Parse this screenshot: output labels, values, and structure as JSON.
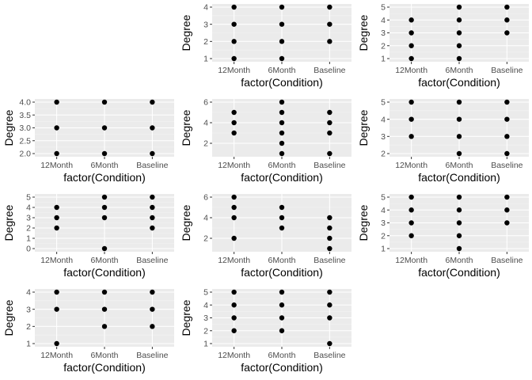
{
  "figure": {
    "background": "#ffffff",
    "panel_background": "#ebebeb",
    "grid_major_color": "#ffffff",
    "grid_minor_color": "#f4f4f4",
    "point_color": "#000000"
  },
  "chart_data": [
    {
      "type": "scatter",
      "xlabel": "factor(Condition)",
      "ylabel": "Degree",
      "categories": [
        "12Month",
        "6Month",
        "Baseline"
      ],
      "yticks": [
        "1",
        "2",
        "3",
        "4"
      ],
      "ylim": [
        1,
        4
      ],
      "grid": true,
      "points": [
        {
          "x": "12Month",
          "y": 1
        },
        {
          "x": "12Month",
          "y": 2
        },
        {
          "x": "12Month",
          "y": 3
        },
        {
          "x": "12Month",
          "y": 4
        },
        {
          "x": "6Month",
          "y": 1
        },
        {
          "x": "6Month",
          "y": 2
        },
        {
          "x": "6Month",
          "y": 3
        },
        {
          "x": "6Month",
          "y": 4
        },
        {
          "x": "Baseline",
          "y": 2
        },
        {
          "x": "Baseline",
          "y": 3
        },
        {
          "x": "Baseline",
          "y": 4
        }
      ]
    },
    {
      "type": "scatter",
      "xlabel": "factor(Condition)",
      "ylabel": "Degree",
      "categories": [
        "12Month",
        "6Month",
        "Baseline"
      ],
      "yticks": [
        "1",
        "2",
        "3",
        "4",
        "5"
      ],
      "ylim": [
        1,
        5
      ],
      "grid": true,
      "points": [
        {
          "x": "12Month",
          "y": 1
        },
        {
          "x": "12Month",
          "y": 2
        },
        {
          "x": "12Month",
          "y": 3
        },
        {
          "x": "12Month",
          "y": 4
        },
        {
          "x": "6Month",
          "y": 1
        },
        {
          "x": "6Month",
          "y": 2
        },
        {
          "x": "6Month",
          "y": 3
        },
        {
          "x": "6Month",
          "y": 4
        },
        {
          "x": "6Month",
          "y": 5
        },
        {
          "x": "Baseline",
          "y": 3
        },
        {
          "x": "Baseline",
          "y": 4
        },
        {
          "x": "Baseline",
          "y": 5
        }
      ]
    },
    {
      "type": "scatter",
      "xlabel": "factor(Condition)",
      "ylabel": "Degree",
      "categories": [
        "12Month",
        "6Month",
        "Baseline"
      ],
      "yticks": [
        "2.0",
        "2.5",
        "3.0",
        "3.5",
        "4.0"
      ],
      "ylim": [
        2,
        4
      ],
      "grid": true,
      "points": [
        {
          "x": "12Month",
          "y": 2
        },
        {
          "x": "12Month",
          "y": 3
        },
        {
          "x": "12Month",
          "y": 4
        },
        {
          "x": "6Month",
          "y": 2
        },
        {
          "x": "6Month",
          "y": 3
        },
        {
          "x": "6Month",
          "y": 4
        },
        {
          "x": "Baseline",
          "y": 2
        },
        {
          "x": "Baseline",
          "y": 3
        },
        {
          "x": "Baseline",
          "y": 4
        }
      ]
    },
    {
      "type": "scatter",
      "xlabel": "factor(Condition)",
      "ylabel": "Degree",
      "categories": [
        "12Month",
        "6Month",
        "Baseline"
      ],
      "yticks": [
        "2",
        "4",
        "6"
      ],
      "ylim": [
        1,
        6
      ],
      "grid": true,
      "points": [
        {
          "x": "12Month",
          "y": 3
        },
        {
          "x": "12Month",
          "y": 4
        },
        {
          "x": "12Month",
          "y": 5
        },
        {
          "x": "6Month",
          "y": 1
        },
        {
          "x": "6Month",
          "y": 2
        },
        {
          "x": "6Month",
          "y": 3
        },
        {
          "x": "6Month",
          "y": 4
        },
        {
          "x": "6Month",
          "y": 5
        },
        {
          "x": "6Month",
          "y": 6
        },
        {
          "x": "Baseline",
          "y": 1
        },
        {
          "x": "Baseline",
          "y": 3
        },
        {
          "x": "Baseline",
          "y": 4
        },
        {
          "x": "Baseline",
          "y": 5
        }
      ]
    },
    {
      "type": "scatter",
      "xlabel": "factor(Condition)",
      "ylabel": "Degree",
      "categories": [
        "12Month",
        "6Month",
        "Baseline"
      ],
      "yticks": [
        "2",
        "3",
        "4",
        "5"
      ],
      "ylim": [
        2,
        5
      ],
      "grid": true,
      "points": [
        {
          "x": "12Month",
          "y": 3
        },
        {
          "x": "12Month",
          "y": 4
        },
        {
          "x": "12Month",
          "y": 5
        },
        {
          "x": "6Month",
          "y": 2
        },
        {
          "x": "6Month",
          "y": 3
        },
        {
          "x": "6Month",
          "y": 4
        },
        {
          "x": "6Month",
          "y": 5
        },
        {
          "x": "Baseline",
          "y": 2
        },
        {
          "x": "Baseline",
          "y": 3
        },
        {
          "x": "Baseline",
          "y": 4
        },
        {
          "x": "Baseline",
          "y": 5
        }
      ]
    },
    {
      "type": "scatter",
      "xlabel": "factor(Condition)",
      "ylabel": "Degree",
      "categories": [
        "12Month",
        "6Month",
        "Baseline"
      ],
      "yticks": [
        "0",
        "1",
        "2",
        "3",
        "4",
        "5"
      ],
      "ylim": [
        0,
        5
      ],
      "grid": true,
      "points": [
        {
          "x": "12Month",
          "y": 2
        },
        {
          "x": "12Month",
          "y": 3
        },
        {
          "x": "12Month",
          "y": 4
        },
        {
          "x": "6Month",
          "y": 0
        },
        {
          "x": "6Month",
          "y": 3
        },
        {
          "x": "6Month",
          "y": 4
        },
        {
          "x": "6Month",
          "y": 5
        },
        {
          "x": "Baseline",
          "y": 2
        },
        {
          "x": "Baseline",
          "y": 3
        },
        {
          "x": "Baseline",
          "y": 4
        },
        {
          "x": "Baseline",
          "y": 5
        }
      ]
    },
    {
      "type": "scatter",
      "xlabel": "factor(Condition)",
      "ylabel": "Degree",
      "categories": [
        "12Month",
        "6Month",
        "Baseline"
      ],
      "yticks": [
        "2",
        "4",
        "6"
      ],
      "ylim": [
        1,
        6
      ],
      "grid": true,
      "points": [
        {
          "x": "12Month",
          "y": 2
        },
        {
          "x": "12Month",
          "y": 4
        },
        {
          "x": "12Month",
          "y": 5
        },
        {
          "x": "12Month",
          "y": 6
        },
        {
          "x": "6Month",
          "y": 3
        },
        {
          "x": "6Month",
          "y": 4
        },
        {
          "x": "6Month",
          "y": 5
        },
        {
          "x": "Baseline",
          "y": 1
        },
        {
          "x": "Baseline",
          "y": 2
        },
        {
          "x": "Baseline",
          "y": 3
        },
        {
          "x": "Baseline",
          "y": 4
        }
      ]
    },
    {
      "type": "scatter",
      "xlabel": "factor(Condition)",
      "ylabel": "Degree",
      "categories": [
        "12Month",
        "6Month",
        "Baseline"
      ],
      "yticks": [
        "1",
        "2",
        "3",
        "4",
        "5"
      ],
      "ylim": [
        1,
        5
      ],
      "grid": true,
      "points": [
        {
          "x": "12Month",
          "y": 2
        },
        {
          "x": "12Month",
          "y": 3
        },
        {
          "x": "12Month",
          "y": 4
        },
        {
          "x": "12Month",
          "y": 5
        },
        {
          "x": "6Month",
          "y": 1
        },
        {
          "x": "6Month",
          "y": 2
        },
        {
          "x": "6Month",
          "y": 3
        },
        {
          "x": "6Month",
          "y": 4
        },
        {
          "x": "6Month",
          "y": 5
        },
        {
          "x": "Baseline",
          "y": 3
        },
        {
          "x": "Baseline",
          "y": 4
        },
        {
          "x": "Baseline",
          "y": 5
        }
      ]
    },
    {
      "type": "scatter",
      "xlabel": "factor(Condition)",
      "ylabel": "Degree",
      "categories": [
        "12Month",
        "6Month",
        "Baseline"
      ],
      "yticks": [
        "1",
        "2",
        "3",
        "4"
      ],
      "ylim": [
        1,
        4
      ],
      "grid": true,
      "points": [
        {
          "x": "12Month",
          "y": 1
        },
        {
          "x": "12Month",
          "y": 3
        },
        {
          "x": "12Month",
          "y": 4
        },
        {
          "x": "6Month",
          "y": 2
        },
        {
          "x": "6Month",
          "y": 3
        },
        {
          "x": "6Month",
          "y": 4
        },
        {
          "x": "Baseline",
          "y": 2
        },
        {
          "x": "Baseline",
          "y": 3
        },
        {
          "x": "Baseline",
          "y": 4
        }
      ]
    },
    {
      "type": "scatter",
      "xlabel": "factor(Condition)",
      "ylabel": "Degree",
      "categories": [
        "12Month",
        "6Month",
        "Baseline"
      ],
      "yticks": [
        "1",
        "2",
        "3",
        "4",
        "5"
      ],
      "ylim": [
        1,
        5
      ],
      "grid": true,
      "points": [
        {
          "x": "12Month",
          "y": 2
        },
        {
          "x": "12Month",
          "y": 3
        },
        {
          "x": "12Month",
          "y": 4
        },
        {
          "x": "12Month",
          "y": 5
        },
        {
          "x": "6Month",
          "y": 2
        },
        {
          "x": "6Month",
          "y": 3
        },
        {
          "x": "6Month",
          "y": 4
        },
        {
          "x": "6Month",
          "y": 5
        },
        {
          "x": "Baseline",
          "y": 1
        },
        {
          "x": "Baseline",
          "y": 3
        },
        {
          "x": "Baseline",
          "y": 4
        },
        {
          "x": "Baseline",
          "y": 5
        }
      ]
    }
  ]
}
